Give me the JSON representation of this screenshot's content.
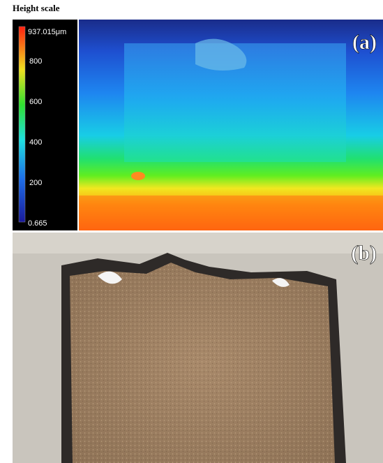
{
  "figure": {
    "scale_title": "Height scale",
    "scale_labels": [
      "937.015μm",
      "800",
      "600",
      "400",
      "200",
      "0.665"
    ],
    "panels": [
      {
        "label": "(a)"
      },
      {
        "label": "(b)"
      }
    ]
  }
}
